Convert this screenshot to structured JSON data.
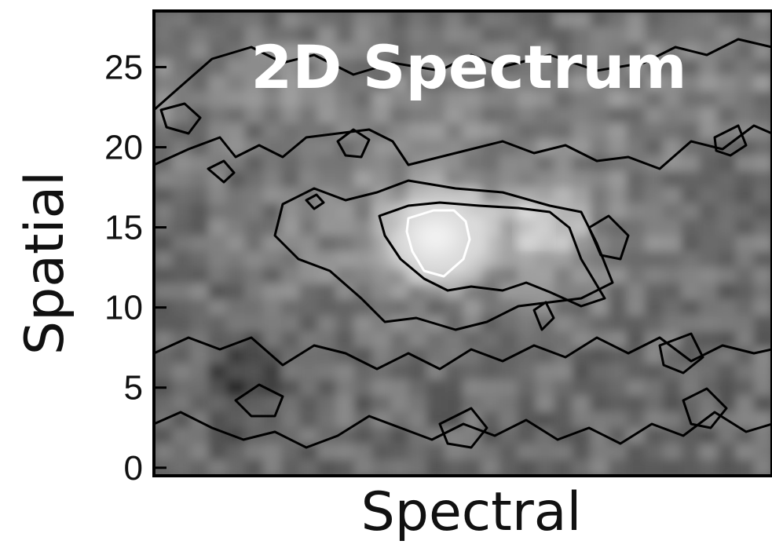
{
  "chart_data": {
    "type": "heatmap",
    "title": "2D Spectrum",
    "xlabel": "Spectral",
    "ylabel": "Spatial",
    "ylim": [
      -0.5,
      28.5
    ],
    "y_ticks": [
      0,
      5,
      10,
      15,
      20,
      25
    ],
    "y_tick_labels": [
      "0",
      "5",
      "10",
      "15",
      "20",
      "25"
    ],
    "x_ticks": [],
    "colormap": "grayscale",
    "contours": "black contour lines with a white contour around the brightest peak",
    "grid": false,
    "peaks": [
      {
        "spectral": 0.47,
        "spatial": 14.8,
        "intensity": 1.0
      },
      {
        "spectral": 0.63,
        "spatial": 15.0,
        "intensity": 0.75
      }
    ]
  }
}
